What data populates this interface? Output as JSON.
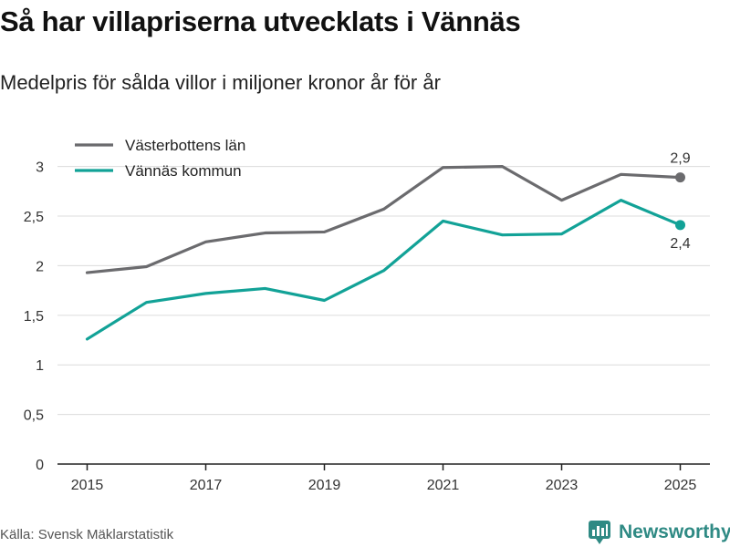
{
  "chart_data": {
    "type": "line",
    "title": "Så har villapriserna utvecklats i Vännäs",
    "subtitle": "Medelpris för sålda villor i miljoner kronor år för år",
    "x": [
      2015,
      2016,
      2017,
      2018,
      2019,
      2020,
      2021,
      2022,
      2023,
      2024,
      2025
    ],
    "x_tick_labels": [
      "2015",
      "2017",
      "2019",
      "2021",
      "2023",
      "2025"
    ],
    "y_tick_labels": [
      "0",
      "0,5",
      "1",
      "1,5",
      "2",
      "2,5",
      "3"
    ],
    "y_ticks": [
      0,
      0.5,
      1,
      1.5,
      2,
      2.5,
      3
    ],
    "ylim": [
      0,
      3.3
    ],
    "xlim": [
      2014.5,
      2025.5
    ],
    "series": [
      {
        "name": "Västerbottens län",
        "color": "#6b6b6e",
        "values": [
          1.93,
          1.99,
          2.24,
          2.33,
          2.34,
          2.57,
          2.99,
          3.0,
          2.66,
          2.92,
          2.89
        ],
        "end_label": "2,9"
      },
      {
        "name": "Vännäs kommun",
        "color": "#12a297",
        "values": [
          1.26,
          1.63,
          1.72,
          1.77,
          1.65,
          1.95,
          2.45,
          2.31,
          2.32,
          2.66,
          2.41
        ],
        "end_label": "2,4"
      }
    ],
    "grid": true,
    "legend": "top-left"
  },
  "source": "Källa: Svensk Mäklarstatistik",
  "brand": {
    "name": "Newsworthy",
    "icon": "newsworthy-logo-icon",
    "color": "#2f8a84"
  }
}
